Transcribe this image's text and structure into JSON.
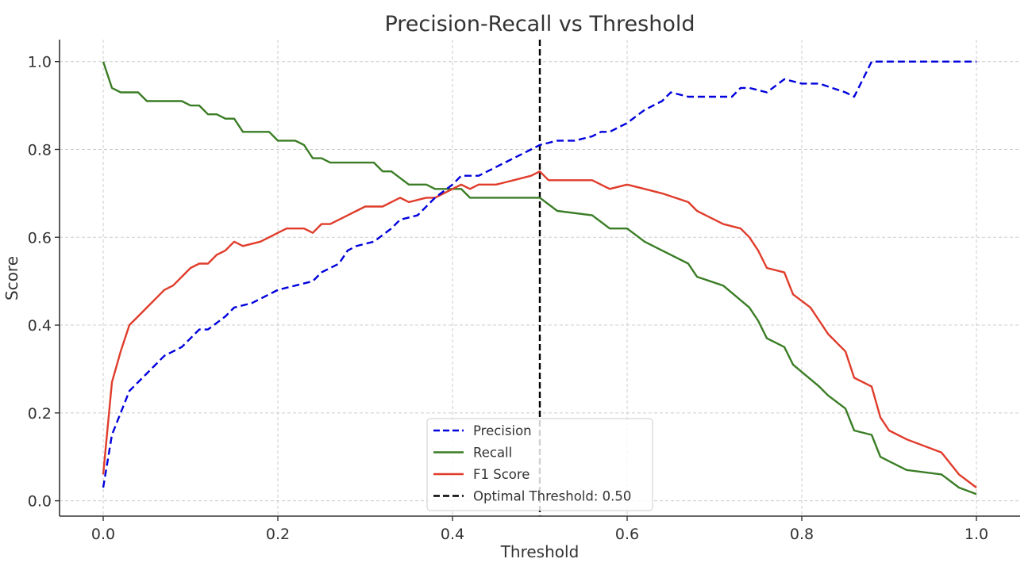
{
  "chart_data": {
    "type": "line",
    "title": "Precision-Recall vs Threshold",
    "xlabel": "Threshold",
    "ylabel": "Score",
    "xlim": [
      -0.05,
      1.05
    ],
    "ylim": [
      -0.035,
      1.05
    ],
    "xticks": [
      "0.0",
      "0.2",
      "0.4",
      "0.6",
      "0.8",
      "1.0"
    ],
    "yticks": [
      "0.0",
      "0.2",
      "0.4",
      "0.6",
      "0.8",
      "1.0"
    ],
    "grid": true,
    "legend_position": "bottom-center",
    "series": [
      {
        "name": "Precision",
        "color": "#0000dd",
        "dash": "dashed",
        "points": [
          [
            0.0,
            0.03
          ],
          [
            0.01,
            0.15
          ],
          [
            0.02,
            0.2
          ],
          [
            0.03,
            0.25
          ],
          [
            0.05,
            0.29
          ],
          [
            0.07,
            0.33
          ],
          [
            0.09,
            0.35
          ],
          [
            0.11,
            0.39
          ],
          [
            0.12,
            0.39
          ],
          [
            0.14,
            0.42
          ],
          [
            0.15,
            0.44
          ],
          [
            0.17,
            0.45
          ],
          [
            0.2,
            0.48
          ],
          [
            0.22,
            0.49
          ],
          [
            0.24,
            0.5
          ],
          [
            0.25,
            0.52
          ],
          [
            0.27,
            0.54
          ],
          [
            0.28,
            0.57
          ],
          [
            0.29,
            0.58
          ],
          [
            0.31,
            0.59
          ],
          [
            0.33,
            0.62
          ],
          [
            0.34,
            0.64
          ],
          [
            0.36,
            0.65
          ],
          [
            0.38,
            0.69
          ],
          [
            0.4,
            0.72
          ],
          [
            0.41,
            0.74
          ],
          [
            0.43,
            0.74
          ],
          [
            0.45,
            0.76
          ],
          [
            0.47,
            0.78
          ],
          [
            0.49,
            0.8
          ],
          [
            0.5,
            0.81
          ],
          [
            0.52,
            0.82
          ],
          [
            0.54,
            0.82
          ],
          [
            0.56,
            0.83
          ],
          [
            0.57,
            0.84
          ],
          [
            0.58,
            0.84
          ],
          [
            0.6,
            0.86
          ],
          [
            0.62,
            0.89
          ],
          [
            0.64,
            0.91
          ],
          [
            0.65,
            0.93
          ],
          [
            0.67,
            0.92
          ],
          [
            0.69,
            0.92
          ],
          [
            0.72,
            0.92
          ],
          [
            0.73,
            0.94
          ],
          [
            0.74,
            0.94
          ],
          [
            0.76,
            0.93
          ],
          [
            0.78,
            0.96
          ],
          [
            0.8,
            0.95
          ],
          [
            0.82,
            0.95
          ],
          [
            0.85,
            0.93
          ],
          [
            0.86,
            0.92
          ],
          [
            0.88,
            1.0
          ],
          [
            0.9,
            1.0
          ],
          [
            1.0,
            1.0
          ]
        ]
      },
      {
        "name": "Recall",
        "color": "#3a7d25",
        "dash": "solid",
        "points": [
          [
            0.0,
            1.0
          ],
          [
            0.01,
            0.94
          ],
          [
            0.02,
            0.93
          ],
          [
            0.04,
            0.93
          ],
          [
            0.05,
            0.91
          ],
          [
            0.09,
            0.91
          ],
          [
            0.1,
            0.9
          ],
          [
            0.11,
            0.9
          ],
          [
            0.12,
            0.88
          ],
          [
            0.13,
            0.88
          ],
          [
            0.14,
            0.87
          ],
          [
            0.15,
            0.87
          ],
          [
            0.16,
            0.84
          ],
          [
            0.19,
            0.84
          ],
          [
            0.2,
            0.82
          ],
          [
            0.22,
            0.82
          ],
          [
            0.23,
            0.81
          ],
          [
            0.24,
            0.78
          ],
          [
            0.25,
            0.78
          ],
          [
            0.26,
            0.77
          ],
          [
            0.31,
            0.77
          ],
          [
            0.32,
            0.75
          ],
          [
            0.33,
            0.75
          ],
          [
            0.35,
            0.72
          ],
          [
            0.37,
            0.72
          ],
          [
            0.38,
            0.71
          ],
          [
            0.41,
            0.71
          ],
          [
            0.42,
            0.69
          ],
          [
            0.5,
            0.69
          ],
          [
            0.52,
            0.66
          ],
          [
            0.56,
            0.65
          ],
          [
            0.58,
            0.62
          ],
          [
            0.6,
            0.62
          ],
          [
            0.62,
            0.59
          ],
          [
            0.64,
            0.57
          ],
          [
            0.65,
            0.56
          ],
          [
            0.67,
            0.54
          ],
          [
            0.68,
            0.51
          ],
          [
            0.71,
            0.49
          ],
          [
            0.74,
            0.44
          ],
          [
            0.75,
            0.41
          ],
          [
            0.76,
            0.37
          ],
          [
            0.78,
            0.35
          ],
          [
            0.79,
            0.31
          ],
          [
            0.82,
            0.26
          ],
          [
            0.83,
            0.24
          ],
          [
            0.85,
            0.21
          ],
          [
            0.86,
            0.16
          ],
          [
            0.88,
            0.15
          ],
          [
            0.89,
            0.1
          ],
          [
            0.9,
            0.09
          ],
          [
            0.92,
            0.07
          ],
          [
            0.96,
            0.06
          ],
          [
            0.98,
            0.03
          ],
          [
            1.0,
            0.015
          ]
        ]
      },
      {
        "name": "F1 Score",
        "color": "#e03c2b",
        "dash": "solid",
        "points": [
          [
            0.0,
            0.06
          ],
          [
            0.01,
            0.27
          ],
          [
            0.02,
            0.34
          ],
          [
            0.03,
            0.4
          ],
          [
            0.04,
            0.42
          ],
          [
            0.05,
            0.44
          ],
          [
            0.06,
            0.46
          ],
          [
            0.07,
            0.48
          ],
          [
            0.08,
            0.49
          ],
          [
            0.09,
            0.51
          ],
          [
            0.1,
            0.53
          ],
          [
            0.11,
            0.54
          ],
          [
            0.12,
            0.54
          ],
          [
            0.13,
            0.56
          ],
          [
            0.14,
            0.57
          ],
          [
            0.15,
            0.59
          ],
          [
            0.16,
            0.58
          ],
          [
            0.18,
            0.59
          ],
          [
            0.19,
            0.6
          ],
          [
            0.2,
            0.61
          ],
          [
            0.21,
            0.62
          ],
          [
            0.22,
            0.62
          ],
          [
            0.23,
            0.62
          ],
          [
            0.24,
            0.61
          ],
          [
            0.25,
            0.63
          ],
          [
            0.26,
            0.63
          ],
          [
            0.27,
            0.64
          ],
          [
            0.28,
            0.65
          ],
          [
            0.29,
            0.66
          ],
          [
            0.3,
            0.67
          ],
          [
            0.32,
            0.67
          ],
          [
            0.33,
            0.68
          ],
          [
            0.34,
            0.69
          ],
          [
            0.35,
            0.68
          ],
          [
            0.37,
            0.69
          ],
          [
            0.38,
            0.69
          ],
          [
            0.39,
            0.7
          ],
          [
            0.4,
            0.71
          ],
          [
            0.41,
            0.72
          ],
          [
            0.42,
            0.71
          ],
          [
            0.43,
            0.72
          ],
          [
            0.45,
            0.72
          ],
          [
            0.47,
            0.73
          ],
          [
            0.49,
            0.74
          ],
          [
            0.5,
            0.75
          ],
          [
            0.51,
            0.73
          ],
          [
            0.52,
            0.73
          ],
          [
            0.55,
            0.73
          ],
          [
            0.56,
            0.73
          ],
          [
            0.57,
            0.72
          ],
          [
            0.58,
            0.71
          ],
          [
            0.6,
            0.72
          ],
          [
            0.62,
            0.71
          ],
          [
            0.64,
            0.7
          ],
          [
            0.67,
            0.68
          ],
          [
            0.68,
            0.66
          ],
          [
            0.7,
            0.64
          ],
          [
            0.71,
            0.63
          ],
          [
            0.73,
            0.62
          ],
          [
            0.74,
            0.6
          ],
          [
            0.75,
            0.57
          ],
          [
            0.76,
            0.53
          ],
          [
            0.78,
            0.52
          ],
          [
            0.79,
            0.47
          ],
          [
            0.81,
            0.44
          ],
          [
            0.82,
            0.41
          ],
          [
            0.83,
            0.38
          ],
          [
            0.85,
            0.34
          ],
          [
            0.86,
            0.28
          ],
          [
            0.88,
            0.26
          ],
          [
            0.89,
            0.19
          ],
          [
            0.9,
            0.16
          ],
          [
            0.92,
            0.14
          ],
          [
            0.96,
            0.11
          ],
          [
            0.98,
            0.06
          ],
          [
            1.0,
            0.03
          ]
        ]
      }
    ],
    "threshold_line": {
      "name": "Optimal Threshold: 0.50",
      "x": 0.5,
      "color": "#000000",
      "dash": "dashed"
    }
  }
}
